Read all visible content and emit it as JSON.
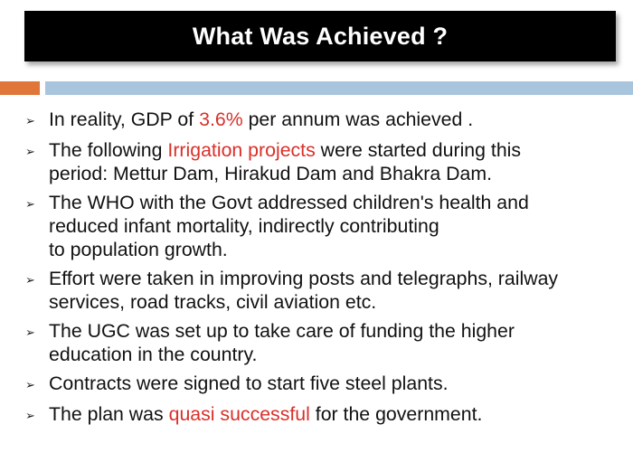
{
  "slide": {
    "title": "What Was Achieved ?",
    "colors": {
      "title_bg": "#000000",
      "title_text": "#ffffff",
      "accent_orange": "#e0763a",
      "accent_blue": "#a9c4dd",
      "highlight": "#d9302a"
    },
    "bullet_icon": "chevron-right-icon",
    "bullet_glyph": "➢",
    "bullets": [
      {
        "before": "In reality, GDP of ",
        "highlight": "3.6%",
        "after": " per annum was achieved ."
      },
      {
        "before": "The following ",
        "highlight": "Irrigation projects",
        "after": " were started during this\nperiod: Mettur Dam, Hirakud Dam and Bhakra Dam."
      },
      {
        "text": "The WHO with the Govt addressed children's health and\nreduced infant mortality, indirectly contributing\nto population growth."
      },
      {
        "text": "Effort were taken in improving posts and telegraphs, railway\nservices, road tracks, civil aviation etc."
      },
      {
        "text": "The UGC was set up to take care of funding the higher\neducation in the country."
      },
      {
        "text": "Contracts were signed to start five steel plants."
      },
      {
        "before": "The plan was ",
        "highlight": "quasi successful",
        "after": " for the government."
      }
    ]
  }
}
